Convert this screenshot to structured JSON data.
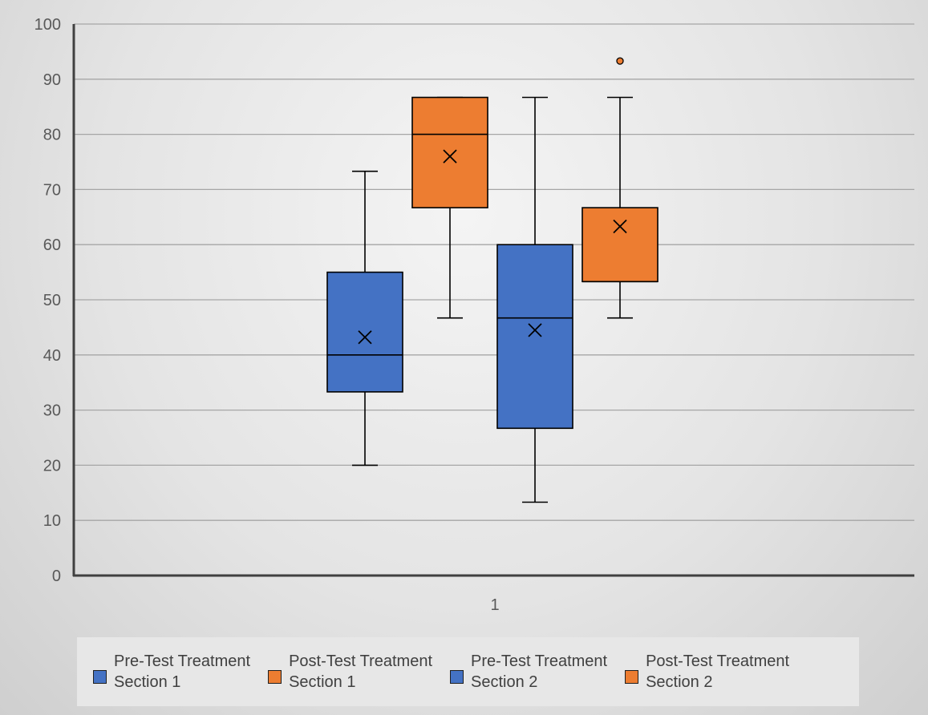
{
  "chart_data": {
    "type": "boxplot",
    "title": "",
    "xlabel": "",
    "ylabel": "",
    "categories": [
      "1"
    ],
    "ylim": [
      0,
      100
    ],
    "yticks": [
      0,
      10,
      20,
      30,
      40,
      50,
      60,
      70,
      80,
      90,
      100
    ],
    "grid": true,
    "legend_position": "bottom",
    "series": [
      {
        "name_line1": "Pre-Test Treatment",
        "name_line2": "Section 1",
        "color": "#4472c4",
        "min": 20,
        "q1": 33.3,
        "median": 40,
        "q3": 55,
        "max": 73.3,
        "mean": 43.2,
        "outliers": []
      },
      {
        "name_line1": "Post-Test Treatment",
        "name_line2": "Section 1",
        "color": "#ed7d31",
        "min": 46.7,
        "q1": 66.7,
        "median": 80,
        "q3": 86.7,
        "max": 86.7,
        "mean": 76,
        "outliers": []
      },
      {
        "name_line1": "Pre-Test Treatment",
        "name_line2": "Section 2",
        "color": "#4472c4",
        "min": 13.3,
        "q1": 26.7,
        "median": 46.7,
        "q3": 60,
        "max": 86.7,
        "mean": 44.5,
        "outliers": []
      },
      {
        "name_line1": "Post-Test Treatment",
        "name_line2": "Section 2",
        "color": "#ed7d31",
        "min": 46.7,
        "q1": 53.3,
        "median": 53.3,
        "q3": 66.7,
        "max": 86.7,
        "mean": 63.3,
        "outliers": [
          93.3
        ]
      }
    ]
  }
}
